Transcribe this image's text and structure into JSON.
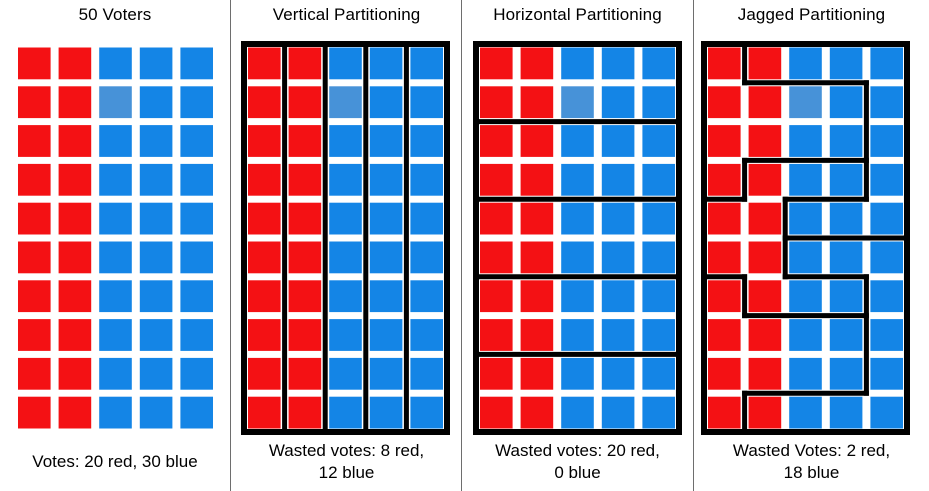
{
  "colors": {
    "red": "#f41114",
    "blue": "#1485e6",
    "light_blue": "#4792d8",
    "district_line": "#000000",
    "divider": "#6e6e6e",
    "text": "#000000",
    "background": "#ffffff"
  },
  "grid": {
    "rows": 10,
    "cols": 5,
    "legend": {
      "R": "red voter",
      "B": "blue voter",
      "L": "light-blue voter"
    },
    "cells": [
      [
        "R",
        "R",
        "B",
        "B",
        "B"
      ],
      [
        "R",
        "R",
        "L",
        "B",
        "B"
      ],
      [
        "R",
        "R",
        "B",
        "B",
        "B"
      ],
      [
        "R",
        "R",
        "B",
        "B",
        "B"
      ],
      [
        "R",
        "R",
        "B",
        "B",
        "B"
      ],
      [
        "R",
        "R",
        "B",
        "B",
        "B"
      ],
      [
        "R",
        "R",
        "B",
        "B",
        "B"
      ],
      [
        "R",
        "R",
        "B",
        "B",
        "B"
      ],
      [
        "R",
        "R",
        "B",
        "B",
        "B"
      ],
      [
        "R",
        "R",
        "B",
        "B",
        "B"
      ]
    ]
  },
  "panels": [
    {
      "id": "voters",
      "title": "50 Voters",
      "caption": [
        "Votes: 20 red, 30 blue"
      ],
      "outline": false,
      "segments": []
    },
    {
      "id": "vertical",
      "title": "Vertical Partitioning",
      "caption": [
        "Wasted votes: 8 red,",
        "12 blue"
      ],
      "outline": true,
      "segments": [
        [
          1,
          0,
          1,
          10
        ],
        [
          2,
          0,
          2,
          10
        ],
        [
          3,
          0,
          3,
          10
        ],
        [
          4,
          0,
          4,
          10
        ]
      ]
    },
    {
      "id": "horizontal",
      "title": "Horizontal Partitioning",
      "caption": [
        "Wasted votes: 20 red,",
        "0 blue"
      ],
      "outline": true,
      "segments": [
        [
          0,
          2,
          5,
          2
        ],
        [
          0,
          4,
          5,
          4
        ],
        [
          0,
          6,
          5,
          6
        ],
        [
          0,
          8,
          5,
          8
        ]
      ]
    },
    {
      "id": "jagged",
      "title": "Jagged Partitioning",
      "caption": [
        "Wasted Votes: 2 red,",
        "18 blue"
      ],
      "outline": true,
      "segments": [
        [
          1,
          0,
          1,
          1
        ],
        [
          1,
          1,
          4,
          1
        ],
        [
          4,
          1,
          4,
          4
        ],
        [
          4,
          4,
          2,
          4
        ],
        [
          2,
          4,
          2,
          6
        ],
        [
          2,
          6,
          4,
          6
        ],
        [
          4,
          6,
          4,
          9
        ],
        [
          4,
          9,
          1,
          9
        ],
        [
          1,
          9,
          1,
          10
        ],
        [
          2,
          5,
          5,
          5
        ],
        [
          0,
          4,
          1,
          4
        ],
        [
          1,
          4,
          1,
          3
        ],
        [
          1,
          3,
          4,
          3
        ],
        [
          0,
          6,
          1,
          6
        ],
        [
          1,
          6,
          1,
          7
        ],
        [
          1,
          7,
          4,
          7
        ]
      ]
    }
  ]
}
